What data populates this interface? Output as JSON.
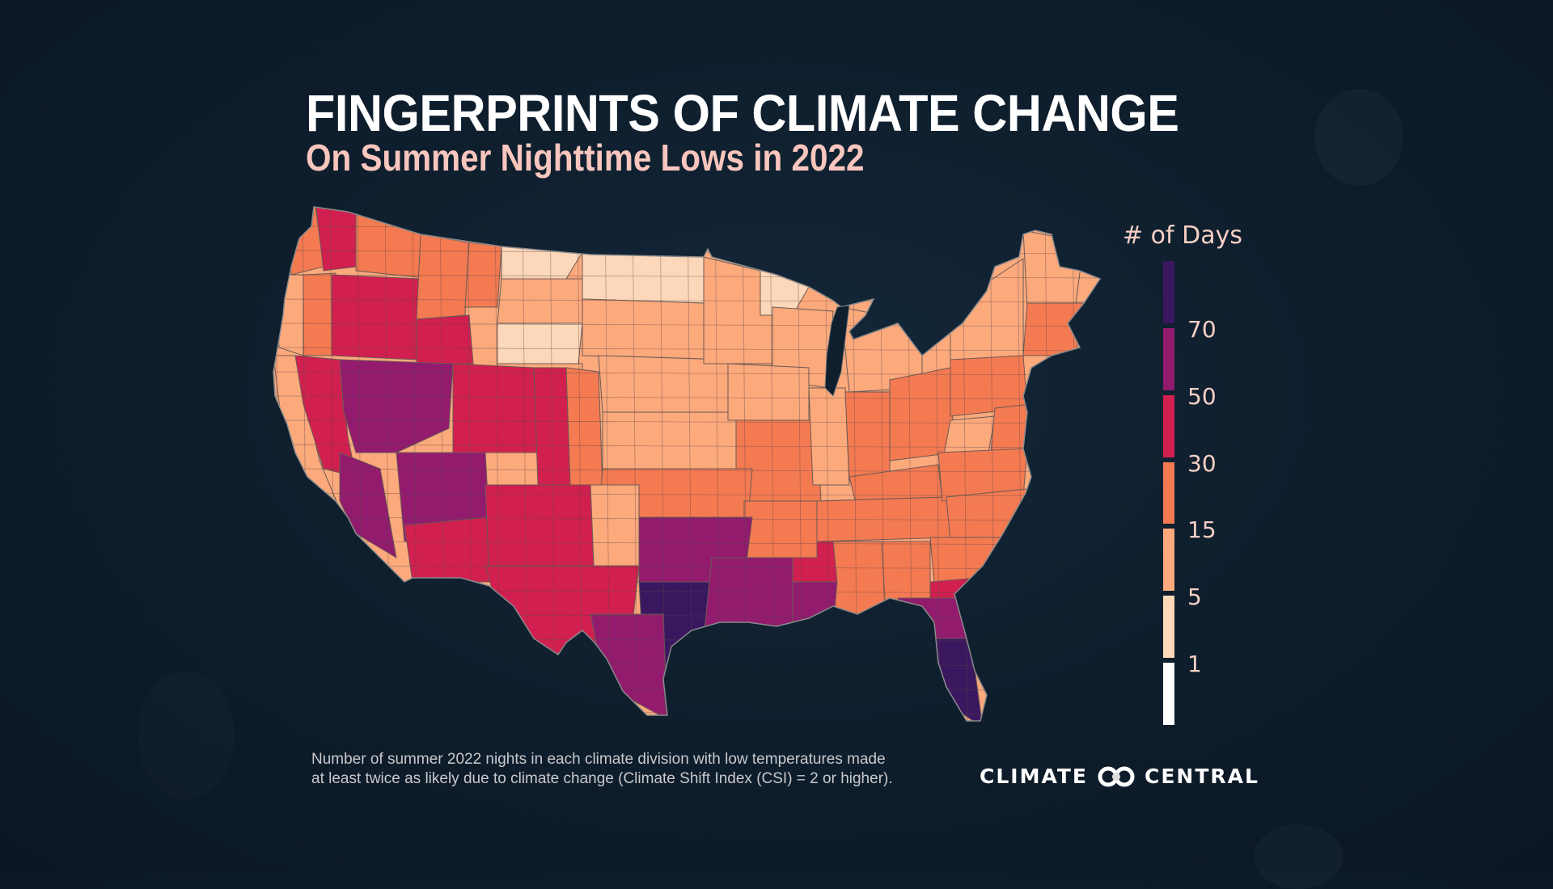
{
  "header": {
    "title": "FINGERPRINTS OF CLIMATE CHANGE",
    "subtitle": "On Summer Nighttime Lows in 2022"
  },
  "legend": {
    "title": "# of Days",
    "bins": [
      {
        "label": "",
        "color": "#3b1760",
        "range": "70+"
      },
      {
        "label": "70",
        "color": "#921b6e",
        "range": "50-70"
      },
      {
        "label": "50",
        "color": "#d11f4f",
        "range": "30-50"
      },
      {
        "label": "30",
        "color": "#f47a52",
        "range": "15-30"
      },
      {
        "label": "15",
        "color": "#fca97c",
        "range": "5-15"
      },
      {
        "label": "5",
        "color": "#fcd7b9",
        "range": "1-5"
      },
      {
        "label": "1",
        "color": "#ffffff",
        "range": "0-1"
      }
    ]
  },
  "footnote": {
    "line1": "Number of summer 2022 nights in each climate division with low temperatures made",
    "line2": "at least twice as likely due to climate change (Climate Shift Index (CSI) = 2 or higher)."
  },
  "logo": {
    "left": "CLIMATE",
    "right": "CENTRAL",
    "icon": "two-circles-logo-icon"
  },
  "chart_data": {
    "type": "choropleth",
    "title": "Fingerprints of Climate Change: On Summer Nighttime Lows in 2022",
    "legend_title": "# of Days",
    "bin_edges": [
      1,
      5,
      15,
      30,
      50,
      70
    ],
    "regions": [
      {
        "name": "Washington west (Puget Sound)",
        "bin": "30-50"
      },
      {
        "name": "Washington coast",
        "bin": "15-30"
      },
      {
        "name": "Washington east",
        "bin": "15-30"
      },
      {
        "name": "Oregon coast",
        "bin": "5-15"
      },
      {
        "name": "Oregon west interior",
        "bin": "15-30"
      },
      {
        "name": "Oregon east",
        "bin": "30-50"
      },
      {
        "name": "Idaho",
        "bin": "15-30"
      },
      {
        "name": "Idaho south",
        "bin": "30-50"
      },
      {
        "name": "Montana north-central",
        "bin": "1-5"
      },
      {
        "name": "Montana west",
        "bin": "15-30"
      },
      {
        "name": "Montana east",
        "bin": "5-15"
      },
      {
        "name": "Wyoming north",
        "bin": "1-5"
      },
      {
        "name": "Wyoming south",
        "bin": "5-15"
      },
      {
        "name": "California coast",
        "bin": "5-15"
      },
      {
        "name": "California interior",
        "bin": "30-50"
      },
      {
        "name": "California southeast desert",
        "bin": "50-70"
      },
      {
        "name": "Nevada",
        "bin": "50-70"
      },
      {
        "name": "Utah",
        "bin": "30-50"
      },
      {
        "name": "Arizona",
        "bin": "50-70"
      },
      {
        "name": "Arizona south",
        "bin": "30-50"
      },
      {
        "name": "Colorado west",
        "bin": "30-50"
      },
      {
        "name": "Colorado east",
        "bin": "15-30"
      },
      {
        "name": "New Mexico",
        "bin": "30-50"
      },
      {
        "name": "North Dakota",
        "bin": "1-5"
      },
      {
        "name": "South Dakota",
        "bin": "5-15"
      },
      {
        "name": "Nebraska",
        "bin": "5-15"
      },
      {
        "name": "Kansas",
        "bin": "5-15"
      },
      {
        "name": "Minnesota",
        "bin": "5-15"
      },
      {
        "name": "Minnesota northeast",
        "bin": "1-5"
      },
      {
        "name": "Wisconsin",
        "bin": "5-15"
      },
      {
        "name": "Iowa",
        "bin": "5-15"
      },
      {
        "name": "Missouri",
        "bin": "15-30"
      },
      {
        "name": "Illinois",
        "bin": "5-15"
      },
      {
        "name": "Michigan",
        "bin": "5-15"
      },
      {
        "name": "Indiana",
        "bin": "15-30"
      },
      {
        "name": "Ohio",
        "bin": "15-30"
      },
      {
        "name": "Kentucky",
        "bin": "15-30"
      },
      {
        "name": "Tennessee",
        "bin": "15-30"
      },
      {
        "name": "West Virginia",
        "bin": "5-15"
      },
      {
        "name": "Pennsylvania",
        "bin": "15-30"
      },
      {
        "name": "New York",
        "bin": "5-15"
      },
      {
        "name": "New England north",
        "bin": "5-15"
      },
      {
        "name": "New England south",
        "bin": "15-30"
      },
      {
        "name": "Mid-Atlantic",
        "bin": "15-30"
      },
      {
        "name": "Virginia",
        "bin": "15-30"
      },
      {
        "name": "North Carolina",
        "bin": "15-30"
      },
      {
        "name": "South Carolina",
        "bin": "15-30"
      },
      {
        "name": "Georgia",
        "bin": "15-30"
      },
      {
        "name": "Georgia east",
        "bin": "30-50"
      },
      {
        "name": "Alabama",
        "bin": "15-30"
      },
      {
        "name": "Mississippi",
        "bin": "30-50"
      },
      {
        "name": "Oklahoma",
        "bin": "15-30"
      },
      {
        "name": "Arkansas",
        "bin": "15-30"
      },
      {
        "name": "Texas panhandle",
        "bin": "5-15"
      },
      {
        "name": "Texas west",
        "bin": "30-50"
      },
      {
        "name": "Texas north-central",
        "bin": "50-70"
      },
      {
        "name": "Texas south-central",
        "bin": "70+"
      },
      {
        "name": "Texas south",
        "bin": "50-70"
      },
      {
        "name": "Louisiana",
        "bin": "50-70"
      },
      {
        "name": "Mississippi south",
        "bin": "50-70"
      },
      {
        "name": "Florida north",
        "bin": "50-70"
      },
      {
        "name": "Florida peninsula",
        "bin": "70+"
      }
    ]
  }
}
